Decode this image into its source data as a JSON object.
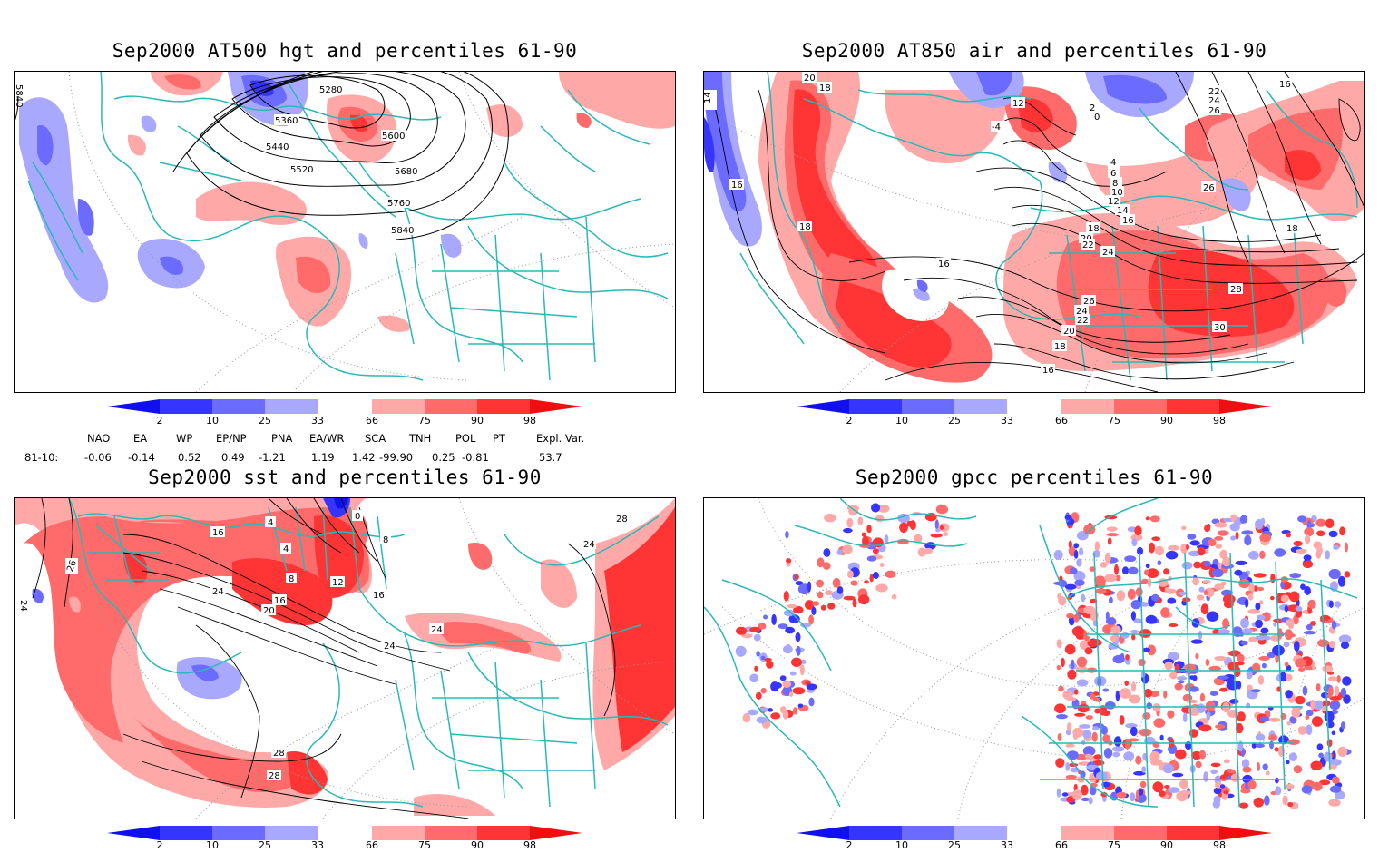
{
  "panels": [
    {
      "title": "Sep2000 AT500 hgt and percentiles 61-90",
      "contour_labels": [
        "5840",
        "5280",
        "5360",
        "5440",
        "5520",
        "5600",
        "5680",
        "5760",
        "5840"
      ]
    },
    {
      "title": "Sep2000 AT850 air and percentiles 61-90",
      "contour_labels": [
        "20",
        "18",
        "14",
        "16",
        "18",
        "16",
        "12",
        "2",
        "0",
        "-4",
        "4",
        "6",
        "8",
        "10",
        "12",
        "14",
        "16",
        "18",
        "20",
        "22",
        "24",
        "26",
        "24",
        "22",
        "20",
        "18",
        "16",
        "26",
        "28",
        "30",
        "18",
        "16",
        "22",
        "24",
        "26"
      ]
    },
    {
      "title": "Sep2000 sst and percentiles 61-90",
      "contour_labels": [
        "24",
        "26",
        "16",
        "4",
        "0",
        "4",
        "8",
        "12",
        "16",
        "20",
        "24",
        "8",
        "16",
        "24",
        "24",
        "28",
        "28",
        "28",
        "24"
      ]
    },
    {
      "title": "Sep2000 gpcc percentiles 61-90",
      "contour_labels": []
    }
  ],
  "colorbar": {
    "ticks": [
      "2",
      "10",
      "25",
      "33",
      "66",
      "75",
      "90",
      "98"
    ],
    "colors": [
      "#1010ee",
      "#3535ff",
      "#6b6bff",
      "#a8a8ff",
      "#ffffff",
      "#ffa8a8",
      "#ff6b6b",
      "#ff3535",
      "#ee1010"
    ]
  },
  "teleconnections": {
    "headers": [
      "NAO",
      "EA",
      "WP",
      "EP/NP",
      "PNA",
      "EA/WR",
      "SCA",
      "TNH",
      "POL",
      "PT",
      "Expl. Var."
    ],
    "row_label": "81-10:",
    "values": [
      "-0.06",
      "-0.14",
      "0.52",
      "0.49",
      "-1.21",
      "1.19",
      "1.42",
      "-99.90",
      "0.25",
      "-0.81",
      "53.7"
    ]
  }
}
